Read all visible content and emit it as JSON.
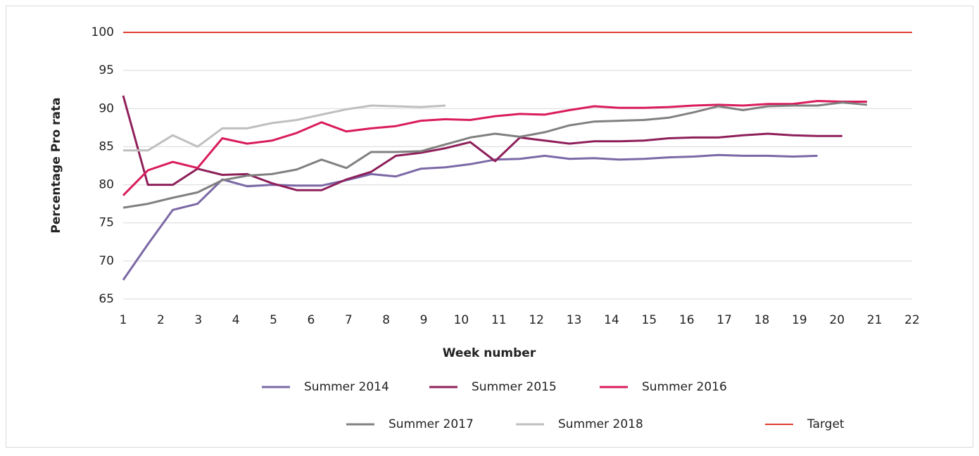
{
  "chart_data": {
    "type": "line",
    "xlabel": "Week number",
    "ylabel": "Percentage Pro rata",
    "x": [
      1,
      1.66,
      2.32,
      2.98,
      3.64,
      4.3,
      4.96,
      5.62,
      6.28,
      6.94,
      7.6,
      8.26,
      8.92,
      9.58,
      10.24,
      10.9,
      11.56,
      12.22,
      12.88,
      13.54,
      14.2,
      14.86,
      15.52,
      16.18,
      16.84,
      17.5,
      18.16,
      18.82,
      19.48,
      20.14,
      20.8
    ],
    "series": [
      {
        "name": "Summer 2014",
        "color": "#7b68a6",
        "values": [
          67.5,
          72.2,
          76.7,
          77.5,
          80.7,
          79.8,
          80.0,
          79.9,
          79.9,
          80.6,
          81.4,
          81.1,
          82.1,
          82.3,
          82.7,
          83.3,
          83.4,
          83.8,
          83.4,
          83.5,
          83.3,
          83.4,
          83.6,
          83.7,
          83.9,
          83.8,
          83.8,
          83.7,
          83.8,
          null,
          null
        ]
      },
      {
        "name": "Summer 2015",
        "color": "#8e1f5a",
        "values": [
          91.7,
          80.0,
          80.0,
          82.1,
          81.3,
          81.4,
          80.2,
          79.3,
          79.3,
          80.7,
          81.7,
          83.8,
          84.2,
          84.8,
          85.6,
          83.1,
          86.2,
          85.8,
          85.4,
          85.7,
          85.7,
          85.8,
          86.1,
          86.2,
          86.2,
          86.5,
          86.7,
          86.5,
          86.4,
          86.4,
          null
        ]
      },
      {
        "name": "Summer 2016",
        "color": "#d91c5c",
        "values": [
          78.6,
          81.9,
          83.0,
          82.2,
          86.1,
          85.4,
          85.8,
          86.8,
          88.2,
          87.0,
          87.4,
          87.7,
          88.4,
          88.6,
          88.5,
          89.0,
          89.3,
          89.2,
          89.8,
          90.3,
          90.1,
          90.1,
          90.2,
          90.4,
          90.5,
          90.4,
          90.6,
          90.6,
          91.0,
          90.9,
          90.9
        ]
      },
      {
        "name": "Summer 2017",
        "color": "#808080",
        "values": [
          77.0,
          77.5,
          78.3,
          79.0,
          80.6,
          81.2,
          81.4,
          82.0,
          83.3,
          82.2,
          84.3,
          84.3,
          84.4,
          85.3,
          86.2,
          86.7,
          86.3,
          86.9,
          87.8,
          88.3,
          88.4,
          88.5,
          88.8,
          89.5,
          90.3,
          89.8,
          90.3,
          90.4,
          90.4,
          90.8,
          90.5
        ]
      },
      {
        "name": "Summer 2018",
        "color": "#bfbfbf",
        "values": [
          84.5,
          84.5,
          86.5,
          85.0,
          87.4,
          87.4,
          88.1,
          88.5,
          89.2,
          89.9,
          90.4,
          90.3,
          90.2,
          90.4,
          null,
          null,
          null,
          null,
          null,
          null,
          null,
          null,
          null,
          null,
          null,
          null,
          null,
          null,
          null,
          null,
          null
        ]
      },
      {
        "name": "Target",
        "color": "#e03c31",
        "x": [
          1,
          22
        ],
        "values": [
          100,
          100
        ]
      }
    ],
    "xlim": [
      1,
      22
    ],
    "xticks": [
      1,
      2,
      3,
      4,
      5,
      6,
      7,
      8,
      9,
      10,
      11,
      12,
      13,
      14,
      15,
      16,
      17,
      18,
      19,
      20,
      21,
      22
    ],
    "ylim": [
      65,
      100
    ],
    "yticks": [
      65,
      70,
      75,
      80,
      85,
      90,
      95,
      100
    ],
    "grid": true
  }
}
